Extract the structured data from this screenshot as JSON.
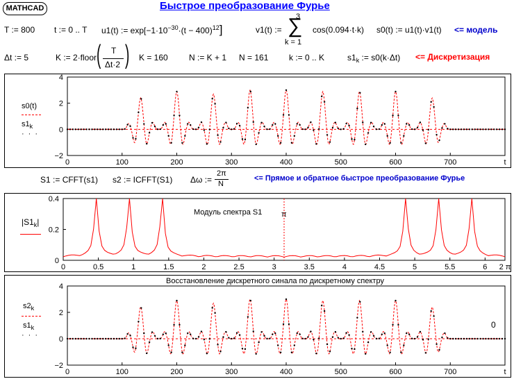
{
  "app": {
    "badge": "MATHCAD",
    "title": "Быстрое преобразование Фурье"
  },
  "row1": {
    "T": "T := 800",
    "t": "t := 0 .. T",
    "u1": "u1(t) := exp[−1·10",
    "u1_exp": "−30",
    "u1_tail": "·(t − 400)",
    "u1_pow": "12",
    "u1_close": "]",
    "v1": "v1(t) :=",
    "sum_top": "3",
    "sum_sym": "∑",
    "sum_bot": "k = 1",
    "cos": "cos(0.094·t·k)",
    "s0": "s0(t) := u1(t)·v1(t)",
    "note": "<= модель"
  },
  "row2": {
    "dt": "Δt := 5",
    "K_def": "K := 2·floor",
    "frac_top": "T",
    "frac_bot": "Δt·2",
    "K_val": "K = 160",
    "N_def": "N := K + 1",
    "N_val": "N = 161",
    "k_range": "k := 0 .. K",
    "s1_def_a": "s1",
    "s1_def_sub": "k",
    "s1_def_b": " := s0(k·Δt)",
    "note": "<= Дискретизация"
  },
  "row3": {
    "S1": "S1 := CFFT(s1)",
    "s2": "s2 := ICFFT(S1)",
    "dw": "Δω :=",
    "dw_top": "2π",
    "dw_bot": "N",
    "note": "<= Прямое и обратное быстрое преобразование Фурье"
  },
  "colors": {
    "line": "#ff0000",
    "points": "#000000",
    "title": "#0000ff",
    "note_blue": "#0000cc",
    "note_red": "#ff0000"
  },
  "chart_data": [
    {
      "type": "line",
      "legend": [
        {
          "name": "s0(t)",
          "style": "dashed-red"
        },
        {
          "name": "s1",
          "sub": "k",
          "style": "black-points"
        }
      ],
      "x_ticks": [
        "0",
        "100",
        "200",
        "300",
        "400",
        "500",
        "600",
        "700",
        "t"
      ],
      "y_ticks": [
        "4",
        "2",
        "0",
        "−2"
      ],
      "xlim": [
        0,
        800
      ],
      "ylim": [
        -2,
        4
      ],
      "pulse_centers": [
        134,
        200,
        267,
        334,
        400,
        467,
        534,
        600,
        667
      ],
      "pulse_peaks": [
        2.6,
        2.9,
        2.7,
        3.0,
        3.0,
        2.9,
        2.9,
        2.9,
        2.6
      ],
      "dip": -1.2
    },
    {
      "type": "line",
      "title": "Модуль спектра S1",
      "marker_label": "π",
      "ylabel": "|S1k|",
      "legend": [
        {
          "name": "|S1",
          "sub": "k",
          "tail": "|",
          "style": "red"
        }
      ],
      "x_ticks": [
        "0",
        "0.5",
        "1",
        "1.5",
        "2",
        "2.5",
        "3",
        "3.5",
        "4",
        "4.5",
        "5",
        "5.5",
        "6",
        "2 π"
      ],
      "y_ticks": [
        "0.4",
        "0.2",
        "0"
      ],
      "xlim": [
        0,
        6.2832
      ],
      "ylim": [
        0,
        0.4
      ],
      "peaks_x": [
        0.47,
        0.94,
        1.41,
        4.87,
        5.34,
        5.81
      ],
      "peak_height": 0.4,
      "base_level": 0.02,
      "pi_marker_x": 3.1416
    },
    {
      "type": "line",
      "title": "Восстановление дискретного синала по дискретному спектру",
      "annotation": "0",
      "legend": [
        {
          "name": "s2",
          "sub": "k",
          "style": "dashed-red"
        },
        {
          "name": "s1",
          "sub": "k",
          "style": "black-points"
        }
      ],
      "x_ticks": [
        "0",
        "100",
        "200",
        "300",
        "400",
        "500",
        "600",
        "700",
        "t"
      ],
      "y_ticks": [
        "4",
        "2",
        "0",
        "−2"
      ],
      "xlim": [
        0,
        800
      ],
      "ylim": [
        -2,
        4
      ],
      "pulse_centers": [
        134,
        200,
        267,
        334,
        400,
        467,
        534,
        600,
        667
      ],
      "pulse_peaks": [
        2.6,
        2.9,
        2.7,
        3.0,
        3.0,
        2.9,
        2.9,
        2.9,
        2.6
      ],
      "dip": -1.2
    }
  ]
}
